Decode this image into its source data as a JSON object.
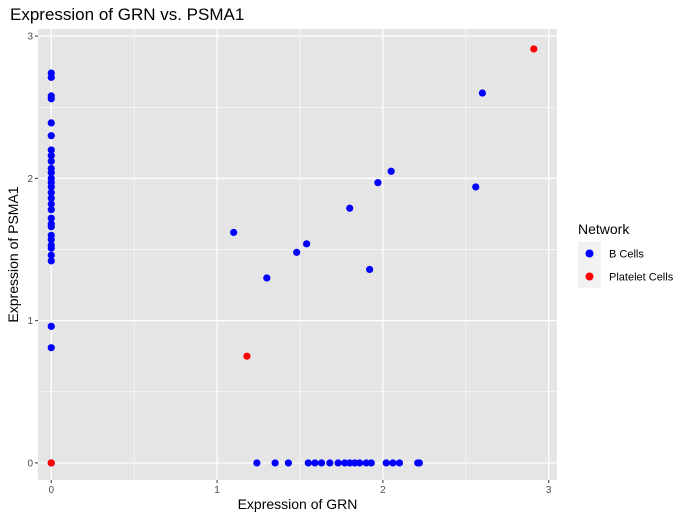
{
  "chart_data": {
    "type": "scatter",
    "title": "Expression of GRN vs. PSMA1",
    "xlabel": "Expression of GRN",
    "ylabel": "Expression of PSMA1",
    "xlim": [
      -0.08,
      3.05
    ],
    "ylim": [
      -0.12,
      3.05
    ],
    "xticks": [
      0,
      1,
      2,
      3
    ],
    "yticks": [
      0,
      1,
      2,
      3
    ],
    "grid": true,
    "legend_position": "right",
    "legend_title": "Network",
    "colors": {
      "panel_bg": "#e5e5e5",
      "grid": "#ffffff",
      "b_cells": "#0000ff",
      "platelet_cells": "#ff0000"
    },
    "series": [
      {
        "name": "B Cells",
        "color": "#0000ff",
        "points": [
          [
            0,
            2.74
          ],
          [
            0,
            2.71
          ],
          [
            0,
            2.58
          ],
          [
            0,
            2.56
          ],
          [
            0,
            2.39
          ],
          [
            0,
            2.3
          ],
          [
            0,
            2.2
          ],
          [
            0,
            2.16
          ],
          [
            0,
            2.12
          ],
          [
            0,
            2.07
          ],
          [
            0,
            2.04
          ],
          [
            0,
            2.0
          ],
          [
            0,
            1.97
          ],
          [
            0,
            1.94
          ],
          [
            0,
            1.9
          ],
          [
            0,
            1.86
          ],
          [
            0,
            1.82
          ],
          [
            0,
            1.78
          ],
          [
            0,
            1.72
          ],
          [
            0,
            1.68
          ],
          [
            0,
            1.66
          ],
          [
            0,
            1.6
          ],
          [
            0,
            1.57
          ],
          [
            0,
            1.53
          ],
          [
            0,
            1.51
          ],
          [
            0,
            1.46
          ],
          [
            0,
            1.42
          ],
          [
            0,
            0.96
          ],
          [
            0,
            0.81
          ],
          [
            0,
            0.0
          ],
          [
            1.1,
            1.62
          ],
          [
            1.3,
            1.3
          ],
          [
            1.48,
            1.48
          ],
          [
            1.54,
            1.54
          ],
          [
            1.8,
            1.79
          ],
          [
            1.92,
            1.36
          ],
          [
            1.97,
            1.97
          ],
          [
            2.05,
            2.05
          ],
          [
            2.56,
            1.94
          ],
          [
            2.6,
            2.6
          ],
          [
            1.24,
            0.0
          ],
          [
            1.35,
            0.0
          ],
          [
            1.43,
            0.0
          ],
          [
            1.55,
            0.0
          ],
          [
            1.59,
            0.0
          ],
          [
            1.63,
            0.0
          ],
          [
            1.68,
            0.0
          ],
          [
            1.73,
            0.0
          ],
          [
            1.77,
            0.0
          ],
          [
            1.8,
            0.0
          ],
          [
            1.83,
            0.0
          ],
          [
            1.86,
            0.0
          ],
          [
            1.9,
            0.0
          ],
          [
            1.93,
            0.0
          ],
          [
            2.02,
            0.0
          ],
          [
            2.06,
            0.0
          ],
          [
            2.1,
            0.0
          ],
          [
            2.21,
            0.0
          ],
          [
            2.22,
            0.0
          ]
        ]
      },
      {
        "name": "Platelet Cells",
        "color": "#ff0000",
        "points": [
          [
            2.91,
            2.91
          ],
          [
            1.18,
            0.75
          ],
          [
            0,
            0.0
          ]
        ]
      }
    ]
  }
}
